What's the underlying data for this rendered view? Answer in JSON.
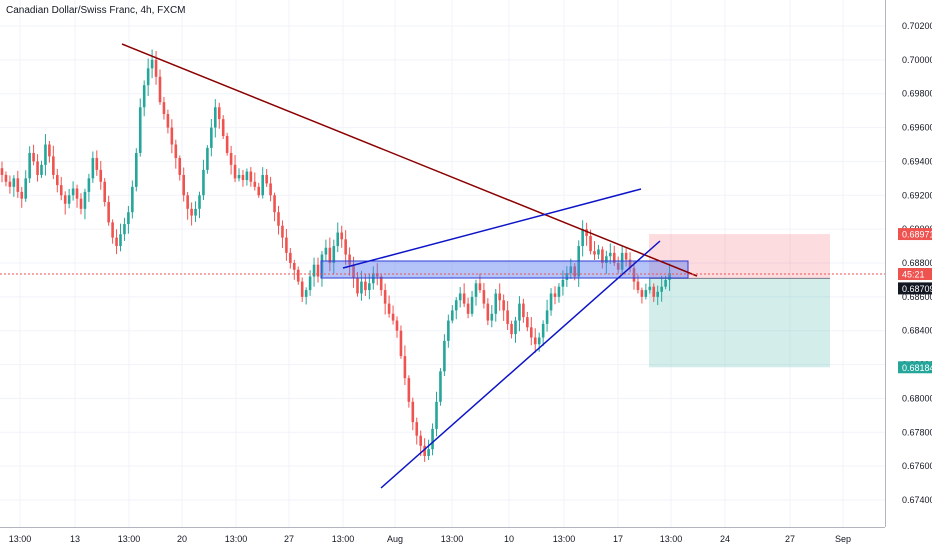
{
  "chart_data": {
    "type": "candlestick",
    "title": "Canadian Dollar/Swiss Franc, 4h, FXCM",
    "ylim": [
      0.673,
      0.703
    ],
    "y_ticks": [
      "0.70200",
      "0.70000",
      "0.69800",
      "0.69600",
      "0.69400",
      "0.69200",
      "0.69000",
      "0.68800",
      "0.68600",
      "0.68400",
      "0.68200",
      "0.68000",
      "0.67800",
      "0.67600",
      "0.67400"
    ],
    "x_ticks": [
      "13:00",
      "13",
      "13:00",
      "20",
      "13:00",
      "27",
      "13:00",
      "Aug",
      "13:00",
      "10",
      "13:00",
      "17",
      "13:00",
      "24",
      "27",
      "Sep"
    ],
    "price_tags": [
      {
        "label": "0.68971",
        "value": 0.68971,
        "color": "#ef5350"
      },
      {
        "label": "45:21",
        "value": 0.68735,
        "color": "#ef5350"
      },
      {
        "label": "0.68709",
        "value": 0.68709,
        "color": "#131722"
      },
      {
        "label": "0.68184",
        "value": 0.68184,
        "color": "#26a69a"
      }
    ],
    "current_price": 0.68735,
    "colors": {
      "up": "#26a69a",
      "down": "#ef5350",
      "upper_trendline": "#8b0000",
      "channel_lines": "#0d14c8",
      "zone_fill": "#5b7cf0"
    },
    "candles_close": [
      0.6932,
      0.6928,
      0.6925,
      0.693,
      0.6922,
      0.6918,
      0.693,
      0.6945,
      0.694,
      0.6932,
      0.6938,
      0.695,
      0.6943,
      0.6932,
      0.6926,
      0.692,
      0.6915,
      0.692,
      0.6924,
      0.6918,
      0.6912,
      0.6922,
      0.693,
      0.6942,
      0.6935,
      0.6928,
      0.6916,
      0.6904,
      0.6895,
      0.689,
      0.6897,
      0.6903,
      0.691,
      0.6925,
      0.6945,
      0.6972,
      0.6985,
      0.6995,
      0.7,
      0.699,
      0.6975,
      0.6968,
      0.696,
      0.695,
      0.6942,
      0.6932,
      0.692,
      0.6912,
      0.6908,
      0.6912,
      0.692,
      0.6935,
      0.6948,
      0.696,
      0.6972,
      0.6965,
      0.6955,
      0.6945,
      0.6938,
      0.693,
      0.6932,
      0.6929,
      0.6934,
      0.6928,
      0.6925,
      0.692,
      0.6932,
      0.6927,
      0.692,
      0.691,
      0.6902,
      0.6895,
      0.6886,
      0.688,
      0.6876,
      0.6869,
      0.686,
      0.6864,
      0.6872,
      0.6879,
      0.6872,
      0.6885,
      0.6889,
      0.688,
      0.689,
      0.6898,
      0.6894,
      0.6885,
      0.6879,
      0.6871,
      0.6862,
      0.6869,
      0.6864,
      0.6868,
      0.6874,
      0.6872,
      0.6864,
      0.6856,
      0.685,
      0.6846,
      0.684,
      0.6825,
      0.6812,
      0.6798,
      0.6786,
      0.6778,
      0.6772,
      0.6766,
      0.677,
      0.6782,
      0.6798,
      0.6816,
      0.6834,
      0.6846,
      0.6852,
      0.6858,
      0.6862,
      0.6856,
      0.685,
      0.686,
      0.6868,
      0.6864,
      0.6856,
      0.6846,
      0.685,
      0.6862,
      0.6858,
      0.6852,
      0.6844,
      0.6838,
      0.6846,
      0.6856,
      0.6848,
      0.6842,
      0.6836,
      0.6832,
      0.6836,
      0.6844,
      0.6852,
      0.6862,
      0.686,
      0.6866,
      0.687,
      0.6874,
      0.6878,
      0.6872,
      0.689,
      0.69,
      0.6896,
      0.6887,
      0.6885,
      0.6888,
      0.688,
      0.6884,
      0.6886,
      0.688,
      0.6876,
      0.6886,
      0.6882,
      0.6877,
      0.6869,
      0.6864,
      0.686,
      0.6864,
      0.6866,
      0.686,
      0.6863,
      0.6866,
      0.687,
      0.6874
    ]
  }
}
